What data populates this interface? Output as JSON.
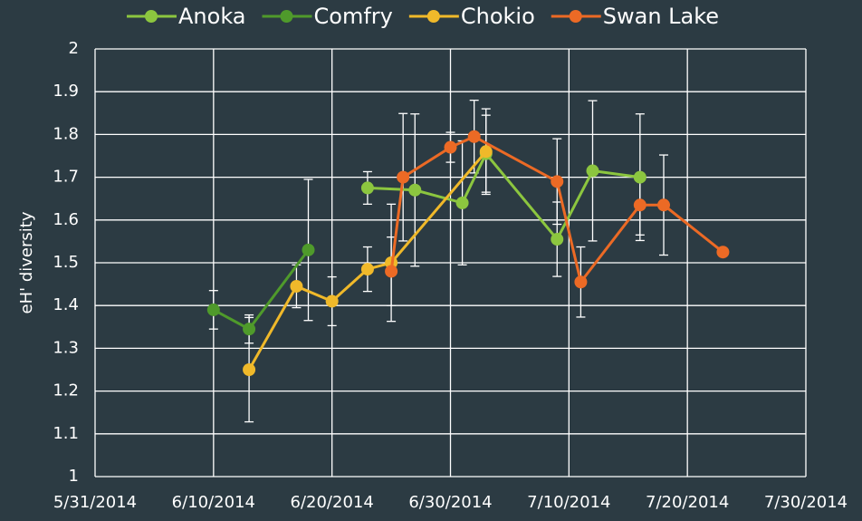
{
  "chart_data": {
    "type": "line",
    "y_label": "eH' diversity",
    "xlim": [
      "5/31/2014",
      "7/30/2014"
    ],
    "xticks": [
      "5/31/2014",
      "6/10/2014",
      "6/20/2014",
      "6/30/2014",
      "7/10/2014",
      "7/20/2014",
      "7/30/2014"
    ],
    "ylim": [
      1,
      2
    ],
    "yticks": [
      1,
      1.1,
      1.2,
      1.3,
      1.4,
      1.5,
      1.6,
      1.7,
      1.8,
      1.9,
      2
    ],
    "grid": true,
    "legend": "top",
    "series": [
      {
        "name": "Anoka",
        "color": "#8cc63f",
        "x": [
          "6/23/2014",
          "6/27/2014",
          "7/1/2014",
          "7/3/2014",
          "7/9/2014",
          "7/12/2014",
          "7/16/2014"
        ],
        "values": [
          1.675,
          1.67,
          1.64,
          1.755,
          1.555,
          1.715,
          1.7
        ],
        "errors": [
          0.038,
          0.178,
          0.145,
          0.09,
          0.087,
          0.164,
          0.148
        ]
      },
      {
        "name": "Comfry",
        "color": "#4f9a2b",
        "x": [
          "6/10/2014",
          "6/13/2014",
          "6/18/2014"
        ],
        "values": [
          1.39,
          1.345,
          1.53
        ],
        "errors": [
          0.045,
          0.033,
          0.165
        ]
      },
      {
        "name": "Chokio",
        "color": "#f0b92a",
        "x": [
          "6/13/2014",
          "6/17/2014",
          "6/20/2014",
          "6/23/2014",
          "6/25/2014",
          "7/3/2014"
        ],
        "values": [
          1.25,
          1.445,
          1.41,
          1.485,
          1.5,
          1.76
        ],
        "errors": [
          0.122,
          0.05,
          0.057,
          0.052,
          0.137,
          0.1
        ]
      },
      {
        "name": "Swan Lake",
        "color": "#ec6a25",
        "x": [
          "6/25/2014",
          "6/26/2014",
          "6/30/2014",
          "7/2/2014",
          "7/9/2014",
          "7/11/2014",
          "7/16/2014",
          "7/18/2014",
          "7/23/2014"
        ],
        "values": [
          1.48,
          1.7,
          1.77,
          1.795,
          1.69,
          1.455,
          1.635,
          1.635,
          1.525
        ],
        "errors": [
          0.08,
          0.149,
          0.035,
          0.085,
          0.1,
          0.082,
          0.07,
          0.117,
          null
        ]
      }
    ]
  }
}
